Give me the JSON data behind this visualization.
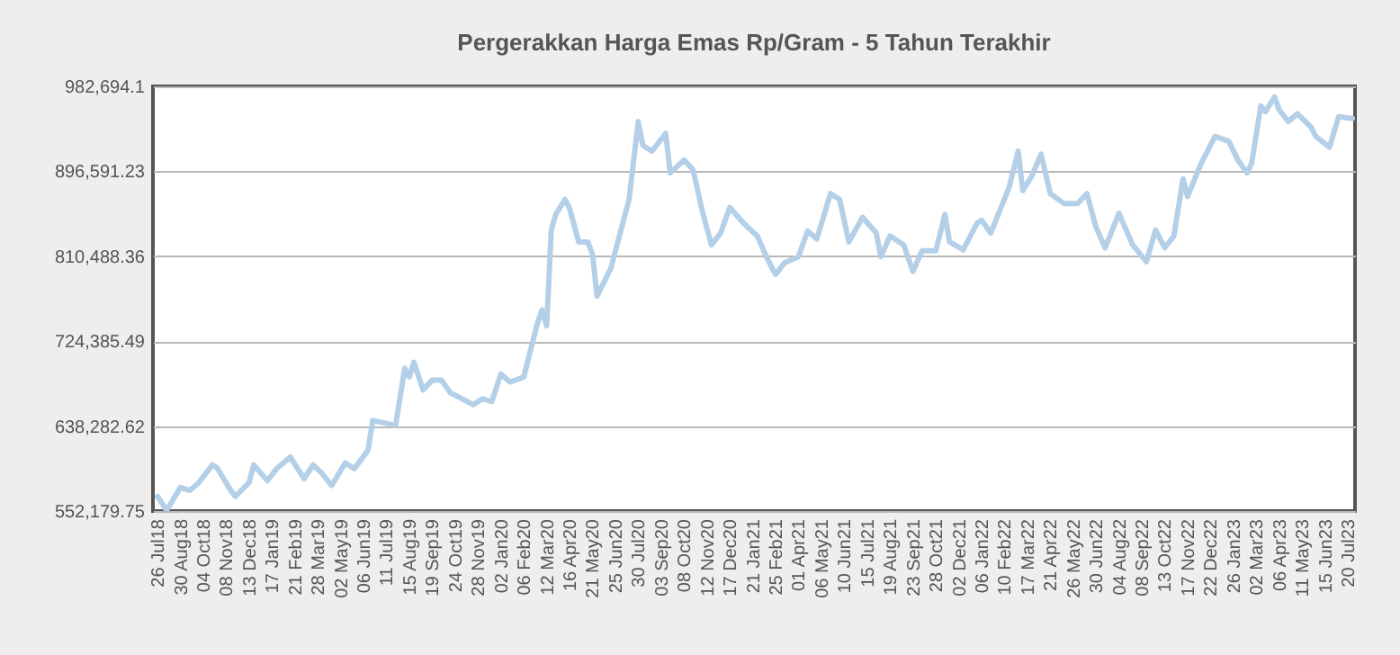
{
  "chart_data": {
    "type": "line",
    "title": "Pergerakkan Harga Emas Rp/Gram - 5 Tahun Terakhir",
    "x": [
      "2018-07-26",
      "2018-08-09",
      "2018-08-30",
      "2018-09-13",
      "2018-09-27",
      "2018-10-18",
      "2018-10-25",
      "2018-11-15",
      "2018-11-22",
      "2018-12-13",
      "2018-12-20",
      "2019-01-10",
      "2019-01-24",
      "2019-02-14",
      "2019-03-07",
      "2019-03-21",
      "2019-04-04",
      "2019-04-18",
      "2019-05-09",
      "2019-05-23",
      "2019-06-13",
      "2019-06-20",
      "2019-07-25",
      "2019-08-08",
      "2019-08-15",
      "2019-08-22",
      "2019-09-05",
      "2019-09-19",
      "2019-10-03",
      "2019-10-17",
      "2019-11-21",
      "2019-12-05",
      "2019-12-19",
      "2020-01-02",
      "2020-01-16",
      "2020-02-06",
      "2020-02-27",
      "2020-03-05",
      "2020-03-12",
      "2020-03-19",
      "2020-03-26",
      "2020-04-09",
      "2020-04-16",
      "2020-04-30",
      "2020-05-14",
      "2020-05-21",
      "2020-05-28",
      "2020-06-18",
      "2020-07-16",
      "2020-07-30",
      "2020-08-06",
      "2020-08-20",
      "2020-09-10",
      "2020-09-17",
      "2020-10-08",
      "2020-10-22",
      "2020-11-05",
      "2020-11-19",
      "2020-12-03",
      "2020-12-17",
      "2021-01-07",
      "2021-01-28",
      "2021-02-11",
      "2021-02-25",
      "2021-03-11",
      "2021-04-01",
      "2021-04-15",
      "2021-04-29",
      "2021-05-20",
      "2021-06-03",
      "2021-06-17",
      "2021-07-08",
      "2021-07-29",
      "2021-08-05",
      "2021-08-19",
      "2021-09-09",
      "2021-09-23",
      "2021-10-07",
      "2021-10-28",
      "2021-11-11",
      "2021-11-18",
      "2021-12-09",
      "2021-12-30",
      "2022-01-06",
      "2022-01-20",
      "2022-02-17",
      "2022-03-03",
      "2022-03-10",
      "2022-03-24",
      "2022-04-07",
      "2022-04-21",
      "2022-05-12",
      "2022-06-02",
      "2022-06-16",
      "2022-06-30",
      "2022-07-14",
      "2022-08-04",
      "2022-08-25",
      "2022-09-15",
      "2022-09-29",
      "2022-10-13",
      "2022-10-27",
      "2022-11-10",
      "2022-11-17",
      "2022-12-08",
      "2022-12-29",
      "2023-01-19",
      "2023-02-02",
      "2023-02-16",
      "2023-02-23",
      "2023-03-09",
      "2023-03-16",
      "2023-03-30",
      "2023-04-06",
      "2023-04-20",
      "2023-05-04",
      "2023-05-25",
      "2023-06-01",
      "2023-06-22",
      "2023-07-06",
      "2023-07-27"
    ],
    "values": [
      567000,
      553000,
      576000,
      573000,
      581000,
      599000,
      596000,
      573000,
      567000,
      581000,
      599000,
      583000,
      595000,
      607000,
      585000,
      599000,
      590000,
      578000,
      601000,
      595000,
      614000,
      644000,
      639000,
      697000,
      688000,
      703000,
      675000,
      685000,
      685000,
      672000,
      660000,
      666000,
      663000,
      691000,
      683000,
      688000,
      743000,
      756000,
      740000,
      837000,
      853000,
      868000,
      859000,
      825000,
      825000,
      813000,
      770000,
      798000,
      868000,
      947000,
      923000,
      917000,
      935000,
      895000,
      908000,
      898000,
      856000,
      822000,
      834000,
      860000,
      844000,
      831000,
      810000,
      792000,
      804000,
      810000,
      836000,
      828000,
      874000,
      868000,
      825000,
      850000,
      834000,
      810000,
      831000,
      822000,
      795000,
      816000,
      816000,
      853000,
      825000,
      817000,
      844000,
      847000,
      834000,
      880000,
      917000,
      877000,
      892000,
      914000,
      874000,
      864000,
      864000,
      874000,
      840000,
      819000,
      854000,
      822000,
      805000,
      837000,
      819000,
      831000,
      889000,
      871000,
      905000,
      932000,
      927000,
      908000,
      895000,
      905000,
      963000,
      957000,
      972000,
      959000,
      947000,
      955000,
      941000,
      932000,
      921000,
      952000,
      950000
    ],
    "color": "#b4d0e8",
    "xlim": [
      "2018-07-19",
      "2023-07-31"
    ],
    "xticks": [
      {
        "value": "2018-07-26",
        "label": "26 Jul18"
      },
      {
        "value": "2018-08-30",
        "label": "30 Aug18"
      },
      {
        "value": "2018-10-04",
        "label": "04 Oct18"
      },
      {
        "value": "2018-11-08",
        "label": "08 Nov18"
      },
      {
        "value": "2018-12-13",
        "label": "13 Dec18"
      },
      {
        "value": "2019-01-17",
        "label": "17 Jan19"
      },
      {
        "value": "2019-02-21",
        "label": "21 Feb19"
      },
      {
        "value": "2019-03-28",
        "label": "28 Mar19"
      },
      {
        "value": "2019-05-02",
        "label": "02 May19"
      },
      {
        "value": "2019-06-06",
        "label": "06 Jun19"
      },
      {
        "value": "2019-07-11",
        "label": "11 Jul19"
      },
      {
        "value": "2019-08-15",
        "label": "15 Aug19"
      },
      {
        "value": "2019-09-19",
        "label": "19 Sep19"
      },
      {
        "value": "2019-10-24",
        "label": "24 Oct19"
      },
      {
        "value": "2019-11-28",
        "label": "28 Nov19"
      },
      {
        "value": "2020-01-02",
        "label": "02 Jan20"
      },
      {
        "value": "2020-02-06",
        "label": "06 Feb20"
      },
      {
        "value": "2020-03-12",
        "label": "12 Mar20"
      },
      {
        "value": "2020-04-16",
        "label": "16 Apr20"
      },
      {
        "value": "2020-05-21",
        "label": "21 May20"
      },
      {
        "value": "2020-06-25",
        "label": "25 Jun20"
      },
      {
        "value": "2020-07-30",
        "label": "30 Jul20"
      },
      {
        "value": "2020-09-03",
        "label": "03 Sep20"
      },
      {
        "value": "2020-10-08",
        "label": "08 Oct20"
      },
      {
        "value": "2020-11-12",
        "label": "12 Nov20"
      },
      {
        "value": "2020-12-17",
        "label": "17 Dec20"
      },
      {
        "value": "2021-01-21",
        "label": "21 Jan21"
      },
      {
        "value": "2021-02-25",
        "label": "25 Feb21"
      },
      {
        "value": "2021-04-01",
        "label": "01 Apr21"
      },
      {
        "value": "2021-05-06",
        "label": "06 May21"
      },
      {
        "value": "2021-06-10",
        "label": "10 Jun21"
      },
      {
        "value": "2021-07-15",
        "label": "15 Jul21"
      },
      {
        "value": "2021-08-19",
        "label": "19 Aug21"
      },
      {
        "value": "2021-09-23",
        "label": "23 Sep21"
      },
      {
        "value": "2021-10-28",
        "label": "28 Oct21"
      },
      {
        "value": "2021-12-02",
        "label": "02 Dec21"
      },
      {
        "value": "2022-01-06",
        "label": "06 Jan22"
      },
      {
        "value": "2022-02-10",
        "label": "10 Feb22"
      },
      {
        "value": "2022-03-17",
        "label": "17 Mar22"
      },
      {
        "value": "2022-04-21",
        "label": "21 Apr22"
      },
      {
        "value": "2022-05-26",
        "label": "26 May22"
      },
      {
        "value": "2022-06-30",
        "label": "30 Jun22"
      },
      {
        "value": "2022-08-04",
        "label": "04 Aug22"
      },
      {
        "value": "2022-09-08",
        "label": "08 Sep22"
      },
      {
        "value": "2022-10-13",
        "label": "13 Oct22"
      },
      {
        "value": "2022-11-17",
        "label": "17 Nov22"
      },
      {
        "value": "2022-12-22",
        "label": "22 Dec22"
      },
      {
        "value": "2023-01-26",
        "label": "26 Jan23"
      },
      {
        "value": "2023-03-02",
        "label": "02 Mar23"
      },
      {
        "value": "2023-04-06",
        "label": "06 Apr23"
      },
      {
        "value": "2023-05-11",
        "label": "11 May23"
      },
      {
        "value": "2023-06-15",
        "label": "15 Jun23"
      },
      {
        "value": "2023-07-20",
        "label": "20 Jul23"
      }
    ],
    "ylim": [
      552179.75,
      982694.1
    ],
    "yticks": [
      {
        "value": 552179.75,
        "label": "552,179.75"
      },
      {
        "value": 638282.62,
        "label": "638,282.62"
      },
      {
        "value": 724385.49,
        "label": "724,385.49"
      },
      {
        "value": 810488.36,
        "label": "810,488.36"
      },
      {
        "value": 896591.23,
        "label": "896,591.23"
      },
      {
        "value": 982694.1,
        "label": "982,694.1"
      }
    ],
    "grid": "y"
  }
}
